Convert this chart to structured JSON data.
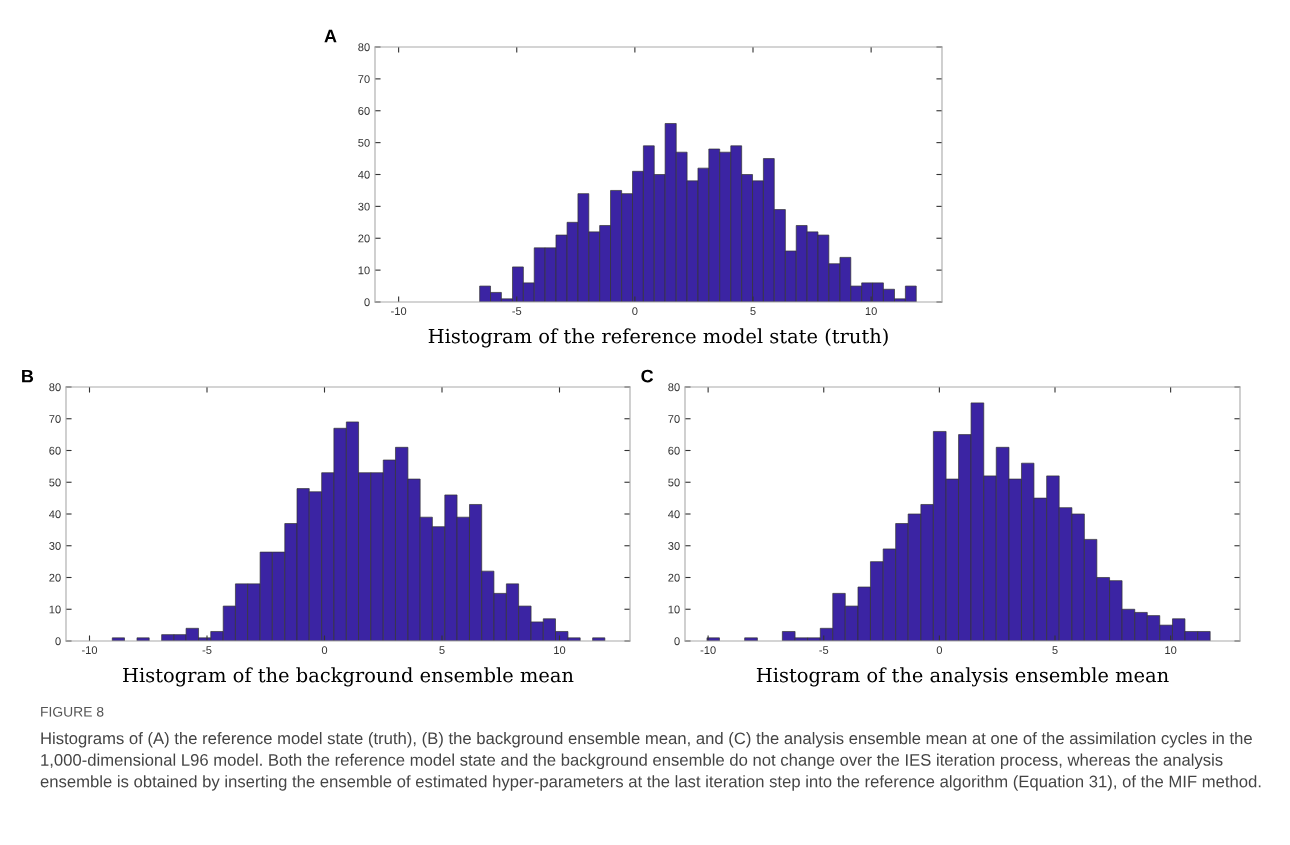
{
  "chart_data": [
    {
      "type": "histogram",
      "annotations": [
        "A"
      ],
      "xlabel": "Histogram of the reference model state (truth)",
      "color": "#3b24a3",
      "xlim": [
        -11,
        13
      ],
      "ylim": [
        0,
        80
      ],
      "xticks": [
        -10,
        -5,
        0,
        5,
        10
      ],
      "yticks": [
        0,
        10,
        20,
        30,
        40,
        50,
        60,
        70,
        80
      ],
      "grid": false,
      "bins": [
        -6.57,
        -6.11,
        -5.65,
        -5.18,
        -4.72,
        -4.26,
        -3.8,
        -3.34,
        -2.87,
        -2.41,
        -1.95,
        -1.49,
        -1.03,
        -0.56,
        -0.1,
        0.36,
        0.82,
        1.28,
        1.75,
        2.21,
        2.67,
        3.13,
        3.59,
        4.06,
        4.52,
        4.98,
        5.44,
        5.9,
        6.37,
        6.83,
        7.29,
        7.75,
        8.21,
        8.68,
        9.14,
        9.6,
        10.06,
        10.52,
        10.99,
        11.45,
        11.91
      ],
      "values": [
        5,
        3,
        1,
        11,
        6,
        17,
        17,
        21,
        25,
        34,
        22,
        24,
        35,
        34,
        41,
        49,
        40,
        56,
        47,
        38,
        42,
        48,
        47,
        49,
        40,
        38,
        45,
        29,
        16,
        24,
        22,
        21,
        12,
        14,
        5,
        6,
        6,
        4,
        1,
        5
      ]
    },
    {
      "type": "histogram",
      "annotations": [
        "B"
      ],
      "xlabel": "Histogram of the background ensemble mean",
      "color": "#3b24a3",
      "xlim": [
        -11,
        13
      ],
      "ylim": [
        0,
        80
      ],
      "xticks": [
        -10,
        -5,
        0,
        5,
        10
      ],
      "yticks": [
        0,
        10,
        20,
        30,
        40,
        50,
        60,
        70,
        80
      ],
      "grid": false,
      "bins": [
        -9.03,
        -8.51,
        -7.98,
        -7.46,
        -6.93,
        -6.41,
        -5.89,
        -5.36,
        -4.84,
        -4.31,
        -3.79,
        -3.27,
        -2.74,
        -2.22,
        -1.69,
        -1.17,
        -0.65,
        -0.12,
        0.4,
        0.93,
        1.45,
        1.97,
        2.5,
        3.02,
        3.55,
        4.07,
        4.59,
        5.12,
        5.64,
        6.17,
        6.69,
        7.21,
        7.74,
        8.26,
        8.79,
        9.31,
        9.83,
        10.36,
        10.88,
        11.41,
        11.93
      ],
      "values": [
        1,
        0,
        1,
        0,
        2,
        2,
        4,
        1,
        3,
        11,
        18,
        18,
        28,
        28,
        37,
        48,
        47,
        53,
        67,
        69,
        53,
        53,
        57,
        61,
        51,
        39,
        36,
        46,
        39,
        43,
        22,
        15,
        18,
        11,
        6,
        7,
        3,
        1,
        0,
        1
      ]
    },
    {
      "type": "histogram",
      "annotations": [
        "C",
        "FIGURE 8",
        "Histograms of (A) the reference model state (truth), (B) the background ensemble mean, and (C) the analysis ensemble mean at one of the assimilation cycles in the 1,000-dimensional L96 model. Both the reference model state and the background ensemble do not change over the IES iteration process, whereas the analysis ensemble is obtained by inserting the ensemble of estimated hyper-parameters at the last iteration step into the reference algorithm (Equation 31), of the MIF method."
      ],
      "xlabel": "Histogram of the analysis ensemble mean",
      "color": "#3b24a3",
      "xlim": [
        -11,
        13
      ],
      "ylim": [
        0,
        80
      ],
      "xticks": [
        -10,
        -5,
        0,
        5,
        10
      ],
      "yticks": [
        0,
        10,
        20,
        30,
        40,
        50,
        60,
        70,
        80
      ],
      "grid": false,
      "bins": [
        -10.05,
        -9.51,
        -8.96,
        -8.42,
        -7.87,
        -7.33,
        -6.79,
        -6.24,
        -5.7,
        -5.15,
        -4.61,
        -4.07,
        -3.52,
        -2.98,
        -2.43,
        -1.89,
        -1.35,
        -0.8,
        -0.26,
        0.29,
        0.83,
        1.37,
        1.92,
        2.46,
        3.01,
        3.55,
        4.09,
        4.64,
        5.18,
        5.73,
        6.27,
        6.81,
        7.36,
        7.9,
        8.45,
        8.99,
        9.53,
        10.08,
        10.62,
        11.17,
        11.71
      ],
      "values": [
        1,
        0,
        0,
        1,
        0,
        0,
        3,
        1,
        1,
        4,
        15,
        11,
        17,
        25,
        29,
        37,
        40,
        43,
        66,
        51,
        65,
        75,
        52,
        61,
        51,
        56,
        45,
        52,
        42,
        40,
        32,
        20,
        19,
        10,
        9,
        8,
        5,
        7,
        3,
        3
      ]
    }
  ]
}
